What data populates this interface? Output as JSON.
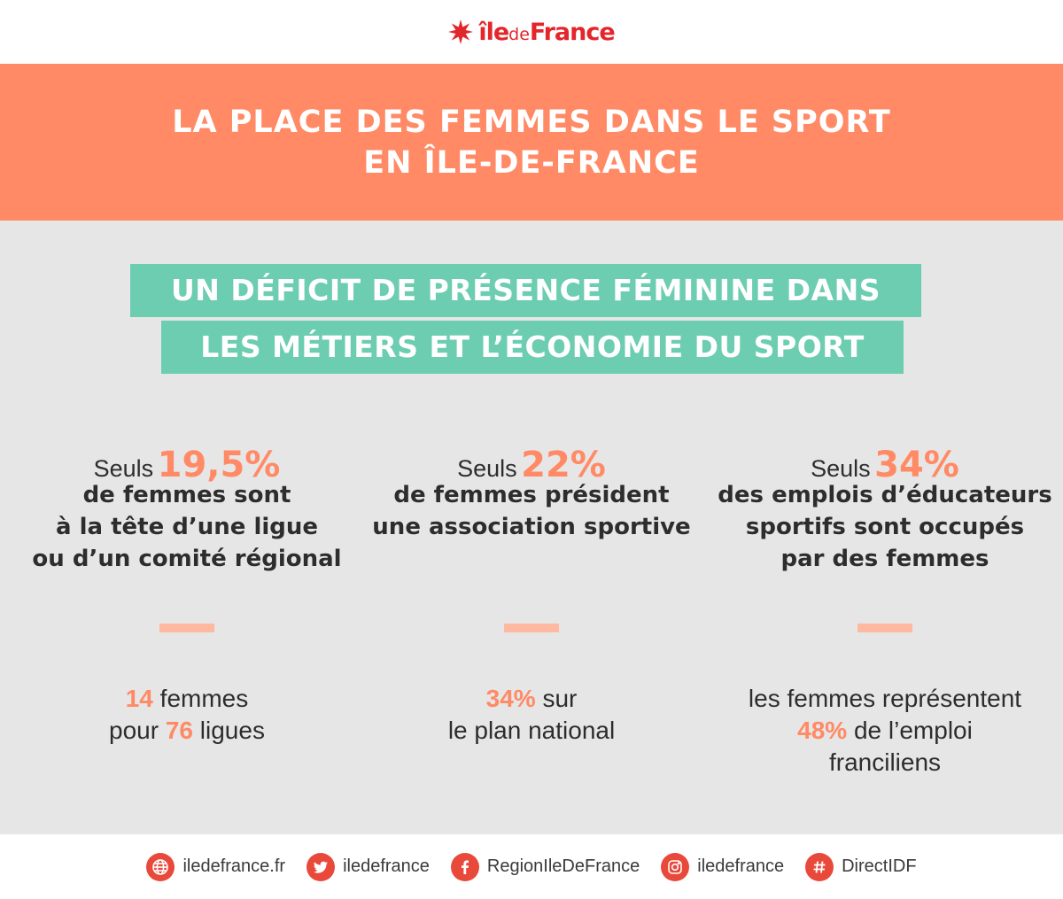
{
  "logo": {
    "part1": "île",
    "part2": "de",
    "part3": "France"
  },
  "title": {
    "line1": "LA PLACE DES FEMMES DANS LE SPORT",
    "line2": "EN ÎLE-DE-FRANCE"
  },
  "subtitle": {
    "line1": "UN DÉFICIT DE PRÉSENCE FÉMININE DANS",
    "line2": "LES MÉTIERS ET L’ÉCONOMIE DU SPORT"
  },
  "stats": [
    {
      "prefix": "Seuls",
      "value": "19,5%",
      "desc": [
        "de femmes sont",
        "à la tête d’une ligue",
        "ou d’un comité régional"
      ],
      "bottom": {
        "v1": "14",
        "t1": " femmes",
        "t2": "pour ",
        "v2": "76",
        "t3": " ligues"
      }
    },
    {
      "prefix": "Seuls",
      "value": "22%",
      "desc": [
        "de femmes président",
        "une association sportive"
      ],
      "bottom": {
        "v1": "34%",
        "t1": " sur",
        "t2": "le plan national"
      }
    },
    {
      "prefix": "Seuls",
      "value": "34%",
      "desc": [
        "des emplois d’éducateurs",
        "sportifs sont occupés",
        "par des femmes"
      ],
      "bottom": {
        "t0": "les femmes représentent",
        "v1": "48%",
        "t1": " de l’emploi",
        "t2": "franciliens"
      }
    }
  ],
  "footer": [
    {
      "icon": "globe-icon",
      "label": "iledefrance.fr"
    },
    {
      "icon": "twitter-icon",
      "label": "iledefrance"
    },
    {
      "icon": "facebook-icon",
      "label": "RegionIleDeFrance"
    },
    {
      "icon": "instagram-icon",
      "label": "iledefrance"
    },
    {
      "icon": "hashtag-icon",
      "label": "DirectIDF"
    }
  ],
  "colors": {
    "accent": "#ff8a65",
    "green": "#6ccdb0",
    "logo_red": "#e3262b",
    "background": "#e6e6e6"
  }
}
